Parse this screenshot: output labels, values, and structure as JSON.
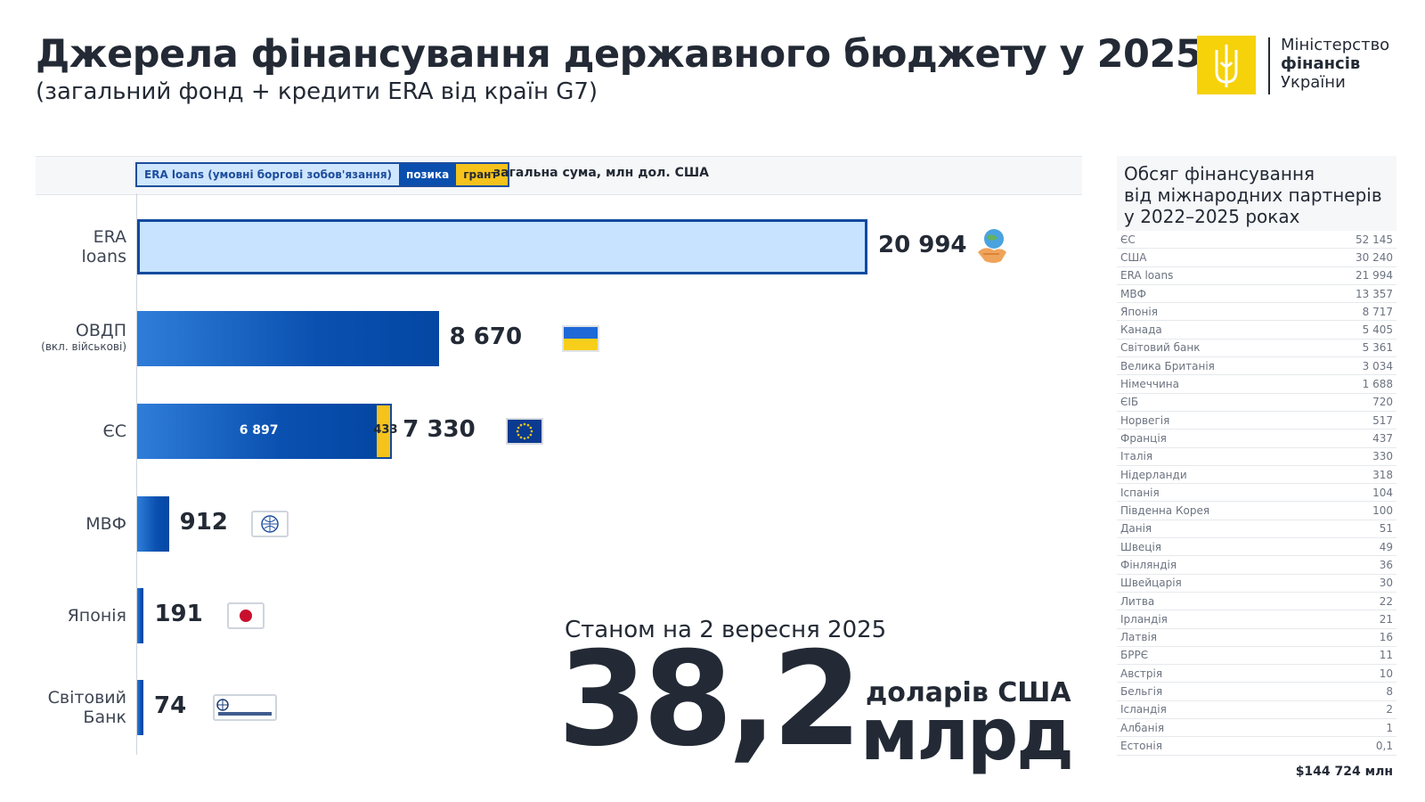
{
  "header": {
    "title": "Джерела фінансування державного бюджету у 2025",
    "subtitle": "(загальний фонд + кредити ERA від країн G7)"
  },
  "logo": {
    "line1": "Міністерство",
    "line2": "фінансів",
    "line3": "України"
  },
  "legend": {
    "era": "ERA loans (умовні боргові зобов'язання)",
    "loan": "позика",
    "grant": "грант",
    "total_note": "загальна сума, млн дол. США"
  },
  "colors": {
    "era_fill": "#c7e3ff",
    "era_border": "#114a9e",
    "loan": "#0a50b0",
    "grant": "#f6c21c",
    "text": "#232a35"
  },
  "chart_data": {
    "type": "bar",
    "orientation": "horizontal",
    "categories": [
      "ERA loans",
      "ОВДП",
      "ЄС",
      "МВФ",
      "Японія",
      "Світовий Банк"
    ],
    "category_notes": [
      "",
      "(вкл. військові)",
      "",
      "",
      "",
      ""
    ],
    "series": [
      {
        "name": "ERA loans (умовні боргові зобов'язання)",
        "values": [
          20994,
          0,
          0,
          0,
          0,
          0
        ]
      },
      {
        "name": "позика",
        "values": [
          0,
          8670,
          6897,
          912,
          191,
          74
        ]
      },
      {
        "name": "грант",
        "values": [
          0,
          0,
          433,
          0,
          0,
          0
        ]
      }
    ],
    "totals": [
      20994,
      8670,
      7330,
      912,
      191,
      74
    ],
    "total_labels": [
      "20 994",
      "8 670",
      "7 330",
      "912",
      "191",
      "74"
    ],
    "segment_labels": {
      "eu_loan": "6 897",
      "eu_grant": "433"
    },
    "icons": [
      "handshake-globe-icon",
      "ukraine-flag-icon",
      "eu-flag-icon",
      "imf-logo-icon",
      "japan-flag-icon",
      "world-bank-logo-icon"
    ],
    "xlim": [
      0,
      20994
    ],
    "grid": false
  },
  "summary": {
    "as_of": "Станом на 2 вересня 2025",
    "amount": "38,2",
    "currency": "доларів США",
    "unit": "млрд"
  },
  "partners_panel": {
    "title_line1": "Обсяг фінансування",
    "title_line2": "від міжнародних партнерів",
    "title_line3": "у 2022–2025 роках",
    "rows": [
      {
        "name": "ЄС",
        "value": "52 145"
      },
      {
        "name": "США",
        "value": "30 240"
      },
      {
        "name": "ERA loans",
        "value": "21 994"
      },
      {
        "name": "МВФ",
        "value": "13 357"
      },
      {
        "name": "Японія",
        "value": "8 717"
      },
      {
        "name": "Канада",
        "value": "5 405"
      },
      {
        "name": "Світовий банк",
        "value": "5 361"
      },
      {
        "name": "Велика Британія",
        "value": "3 034"
      },
      {
        "name": "Німеччина",
        "value": "1 688"
      },
      {
        "name": "ЄІБ",
        "value": "720"
      },
      {
        "name": "Норвегія",
        "value": "517"
      },
      {
        "name": "Франція",
        "value": "437"
      },
      {
        "name": "Італія",
        "value": "330"
      },
      {
        "name": "Нідерланди",
        "value": "318"
      },
      {
        "name": "Іспанія",
        "value": "104"
      },
      {
        "name": "Південна Корея",
        "value": "100"
      },
      {
        "name": "Данія",
        "value": "51"
      },
      {
        "name": "Швеція",
        "value": "49"
      },
      {
        "name": "Фінляндія",
        "value": "36"
      },
      {
        "name": "Швейцарія",
        "value": "30"
      },
      {
        "name": "Литва",
        "value": "22"
      },
      {
        "name": "Ірландія",
        "value": "21"
      },
      {
        "name": "Латвія",
        "value": "16"
      },
      {
        "name": "БРРЄ",
        "value": "11"
      },
      {
        "name": "Австрія",
        "value": "10"
      },
      {
        "name": "Бельгія",
        "value": "8"
      },
      {
        "name": "Ісландія",
        "value": "2"
      },
      {
        "name": "Албанія",
        "value": "1"
      },
      {
        "name": "Естонія",
        "value": "0,1"
      }
    ],
    "total": "$144 724 млн"
  }
}
